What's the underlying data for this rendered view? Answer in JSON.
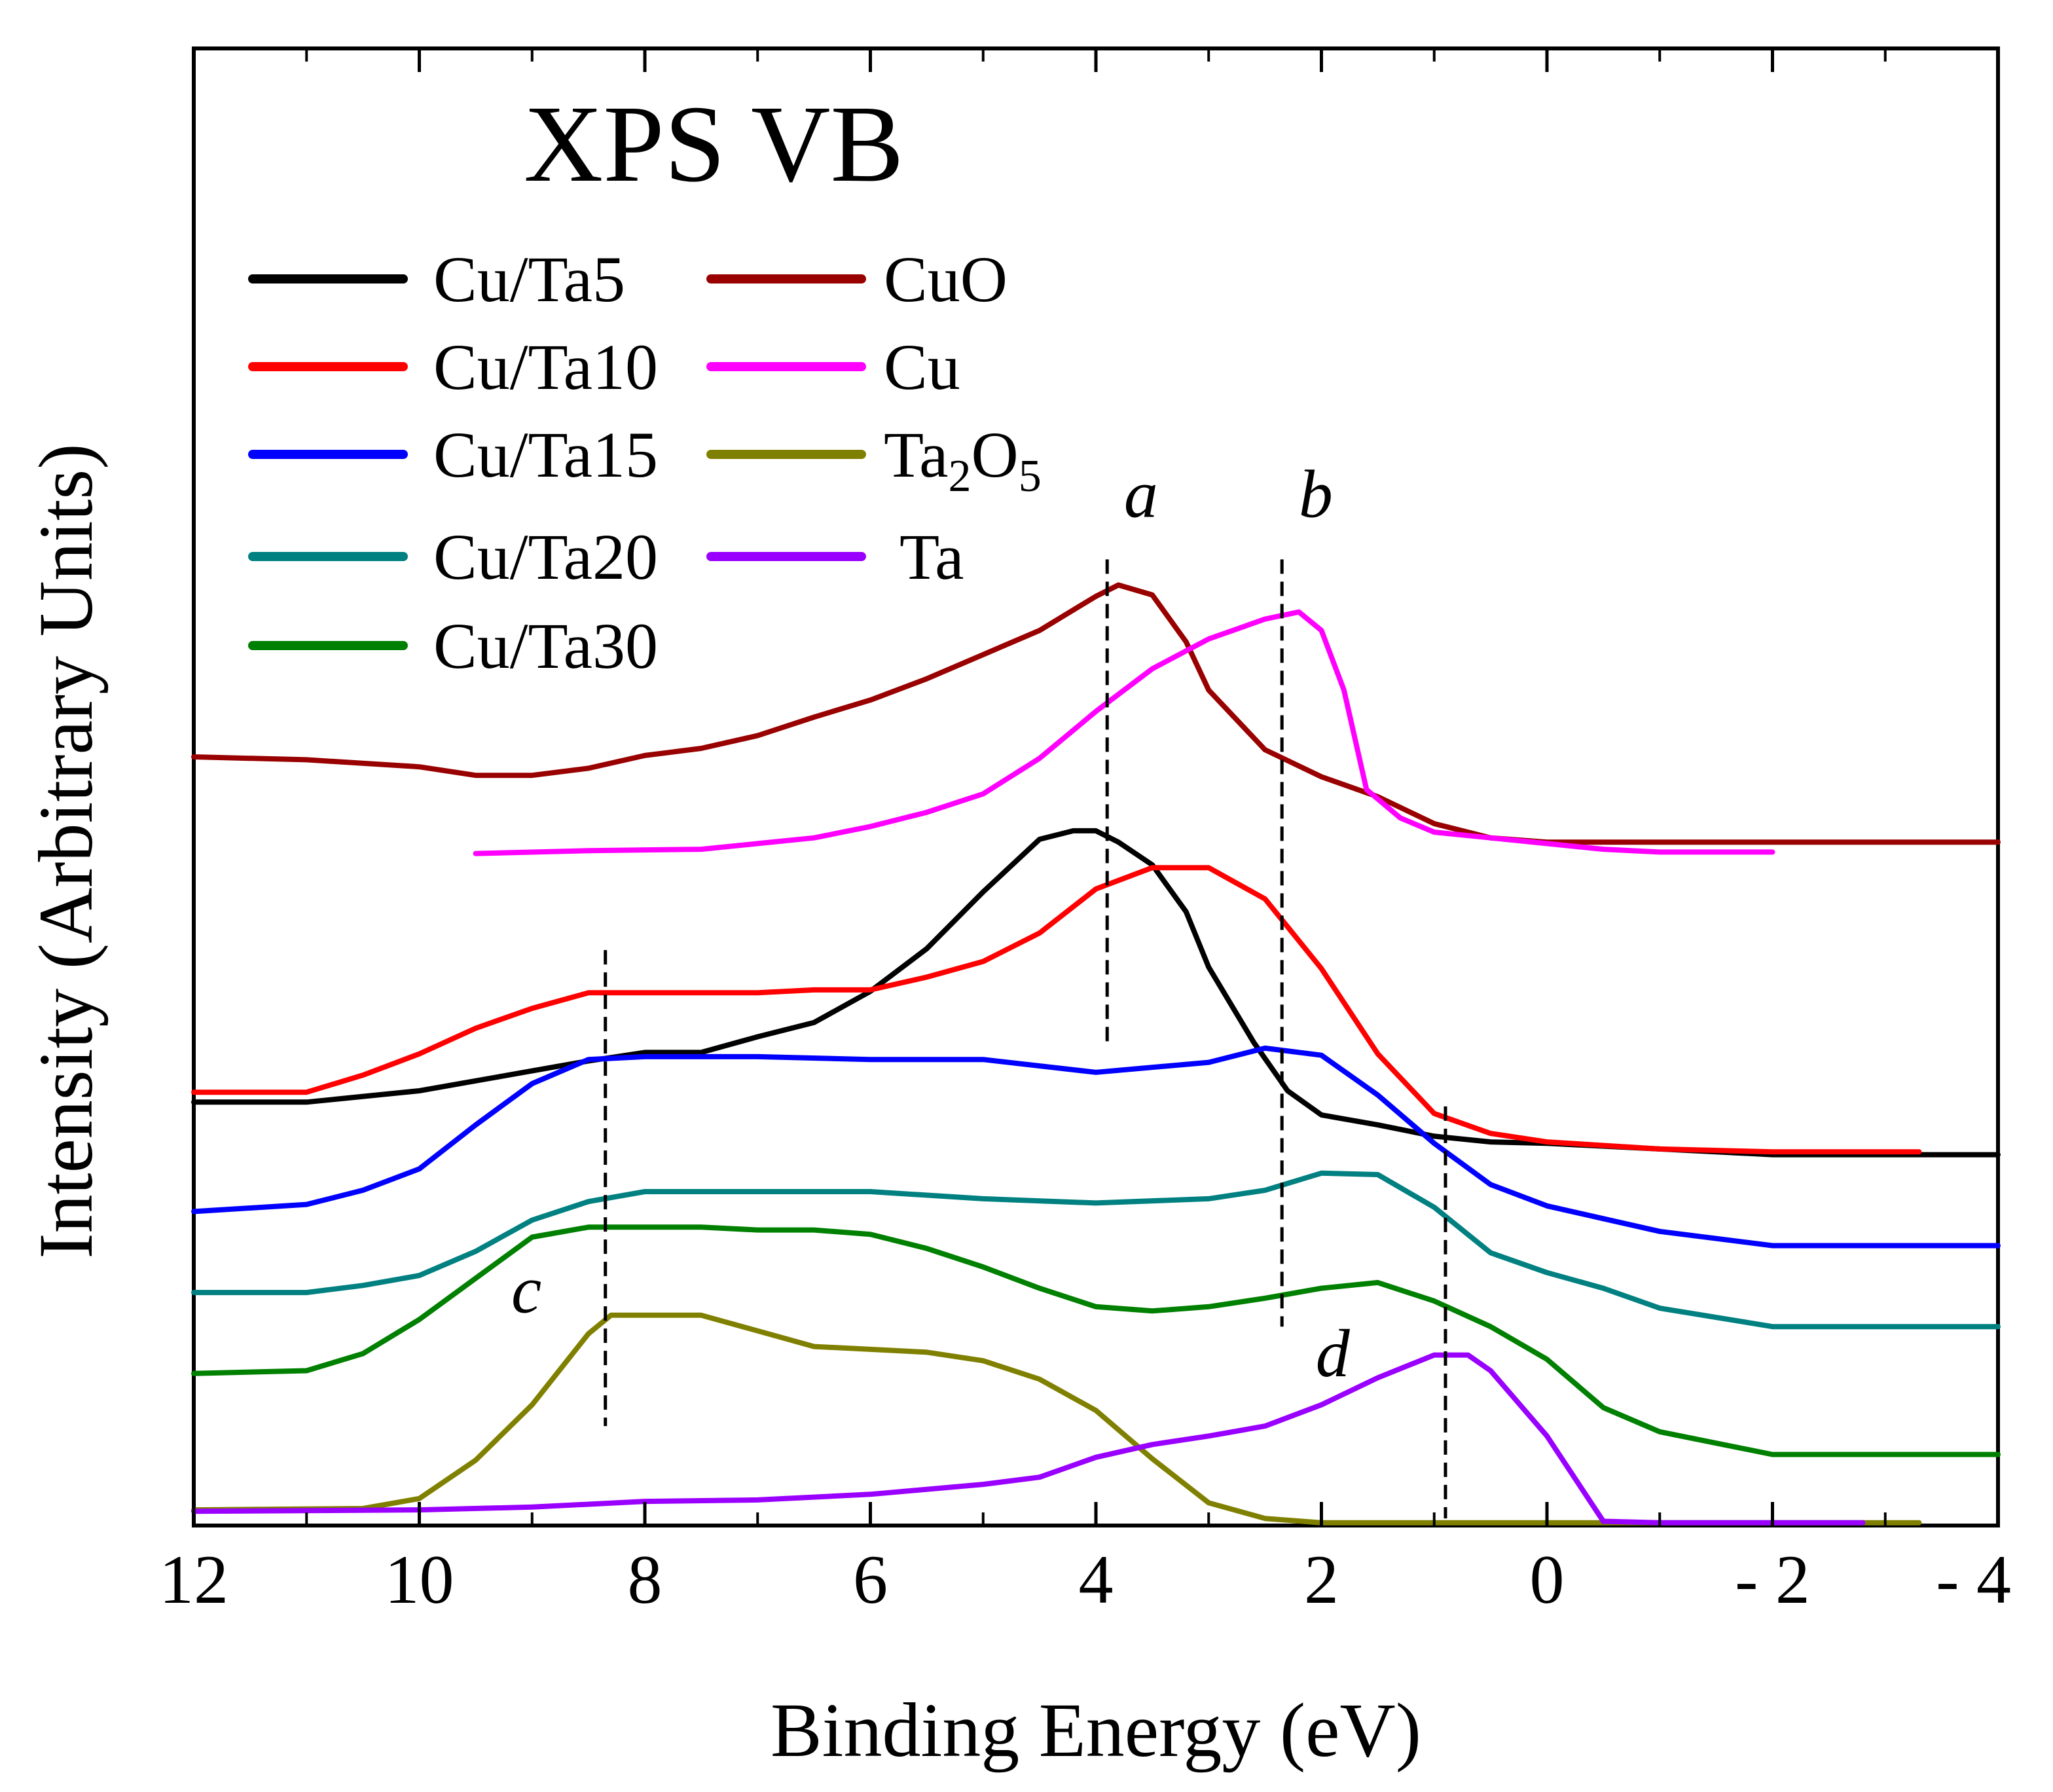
{
  "chart_data": {
    "type": "line",
    "title": "XPS VB",
    "xlabel": "Binding Energy (eV)",
    "ylabel": "Intensity (Arbitrary Units)",
    "xlim": [
      12,
      -4
    ],
    "ylim": [
      0,
      100
    ],
    "x_ticks": [
      12,
      10,
      8,
      6,
      4,
      2,
      0,
      -2,
      -4
    ],
    "x_tick_labels": [
      "12",
      "10",
      "8",
      "6",
      "4",
      "2",
      "0",
      "- 2",
      "- 4"
    ],
    "y_ticks_shown": false,
    "legend": {
      "position": "top-left",
      "columns": [
        [
          "Cu/Ta5",
          "Cu/Ta10",
          "Cu/Ta15",
          "Cu/Ta20",
          "Cu/Ta30"
        ],
        [
          "CuO",
          "Cu",
          "Ta2O5",
          "Ta"
        ]
      ]
    },
    "series": [
      {
        "name": "Cu/Ta5",
        "label_main": "Cu/Ta5",
        "label_sub": "",
        "label_tail": "",
        "color": "#000000",
        "x": [
          12.0,
          11.0,
          10.0,
          9.5,
          9.0,
          8.5,
          8.0,
          7.5,
          7.0,
          6.5,
          6.0,
          5.5,
          5.0,
          4.5,
          4.2,
          4.0,
          3.8,
          3.5,
          3.2,
          3.0,
          2.6,
          2.3,
          2.0,
          1.5,
          1.0,
          0.5,
          0.0,
          -1.0,
          -2.0,
          -3.0,
          -4.0
        ],
        "y": [
          29.8,
          29.8,
          30.6,
          31.3,
          32.0,
          32.7,
          33.3,
          33.3,
          34.4,
          35.4,
          37.6,
          40.6,
          44.6,
          48.3,
          48.9,
          48.9,
          48.1,
          46.5,
          43.2,
          39.3,
          34.0,
          30.6,
          28.9,
          28.2,
          27.4,
          27.0,
          26.9,
          26.5,
          26.1,
          26.1,
          26.1
        ]
      },
      {
        "name": "Cu/Ta10",
        "label_main": "Cu/Ta10",
        "label_sub": "",
        "label_tail": "",
        "color": "#ff0000",
        "x": [
          12.0,
          11.0,
          10.5,
          10.0,
          9.5,
          9.0,
          8.5,
          8.0,
          7.5,
          7.0,
          6.5,
          6.0,
          5.5,
          5.0,
          4.5,
          4.0,
          3.5,
          3.0,
          2.5,
          2.0,
          1.5,
          1.0,
          0.5,
          0.0,
          -1.0,
          -2.0,
          -3.3
        ],
        "y": [
          30.5,
          30.5,
          31.7,
          33.2,
          35.0,
          36.4,
          37.5,
          37.5,
          37.5,
          37.5,
          37.7,
          37.7,
          38.6,
          39.7,
          41.7,
          44.8,
          46.3,
          46.3,
          44.1,
          39.2,
          33.2,
          29.0,
          27.6,
          27.0,
          26.5,
          26.3,
          26.3
        ]
      },
      {
        "name": "Cu/Ta15",
        "label_main": "Cu/Ta15",
        "label_sub": "",
        "label_tail": "",
        "color": "#0000ff",
        "x": [
          12.0,
          11.0,
          10.5,
          10.0,
          9.5,
          9.0,
          8.5,
          8.0,
          7.0,
          6.0,
          5.0,
          4.0,
          3.0,
          2.5,
          2.0,
          1.5,
          1.0,
          0.5,
          0.0,
          -0.5,
          -1.0,
          -2.0,
          -3.0,
          -4.0
        ],
        "y": [
          22.1,
          22.6,
          23.6,
          25.1,
          28.2,
          31.1,
          32.8,
          33.0,
          33.0,
          32.8,
          32.8,
          31.9,
          32.6,
          33.6,
          33.1,
          30.3,
          26.9,
          24.0,
          22.5,
          21.6,
          20.7,
          19.7,
          19.7,
          19.7
        ]
      },
      {
        "name": "Cu/Ta20",
        "label_main": "Cu/Ta20",
        "label_sub": "",
        "label_tail": "",
        "color": "#008080",
        "x": [
          12.0,
          11.0,
          10.5,
          10.0,
          9.5,
          9.0,
          8.5,
          8.0,
          7.0,
          6.0,
          5.0,
          4.0,
          3.0,
          2.5,
          2.0,
          1.5,
          1.0,
          0.5,
          0.0,
          -0.5,
          -1.0,
          -2.0,
          -3.0,
          -4.0
        ],
        "y": [
          16.4,
          16.4,
          16.9,
          17.6,
          19.3,
          21.5,
          22.8,
          23.5,
          23.5,
          23.5,
          23.0,
          22.7,
          23.0,
          23.6,
          24.8,
          24.7,
          22.4,
          19.2,
          17.8,
          16.7,
          15.3,
          14.0,
          14.0,
          14.0
        ]
      },
      {
        "name": "Cu/Ta30",
        "label_main": "Cu/Ta30",
        "label_sub": "",
        "label_tail": "",
        "color": "#008000",
        "x": [
          12.0,
          11.0,
          10.5,
          10.0,
          9.5,
          9.0,
          8.5,
          8.0,
          7.5,
          7.0,
          6.5,
          6.0,
          5.5,
          5.0,
          4.5,
          4.0,
          3.5,
          3.0,
          2.5,
          2.0,
          1.5,
          1.0,
          0.5,
          0.0,
          -0.5,
          -1.0,
          -2.0,
          -3.0,
          -4.0
        ],
        "y": [
          10.7,
          10.9,
          12.1,
          14.5,
          17.4,
          20.3,
          21.0,
          21.0,
          21.0,
          20.8,
          20.8,
          20.5,
          19.5,
          18.2,
          16.7,
          15.4,
          15.1,
          15.4,
          16.0,
          16.7,
          17.1,
          15.8,
          14.0,
          11.7,
          8.3,
          6.6,
          5.0,
          5.0,
          5.0
        ]
      },
      {
        "name": "CuO",
        "label_main": "CuO",
        "label_sub": "",
        "label_tail": "",
        "color": "#990000",
        "x": [
          12.0,
          11.0,
          10.0,
          9.5,
          9.0,
          8.5,
          8.0,
          7.5,
          7.0,
          6.5,
          6.0,
          5.5,
          5.0,
          4.5,
          4.0,
          3.8,
          3.5,
          3.2,
          3.0,
          2.5,
          2.0,
          1.5,
          1.0,
          0.5,
          0.0,
          -1.0,
          -2.0,
          -3.0,
          -4.0
        ],
        "y": [
          54.1,
          53.9,
          53.4,
          52.8,
          52.8,
          53.3,
          54.2,
          54.7,
          55.6,
          56.9,
          58.1,
          59.6,
          61.3,
          63.0,
          65.4,
          66.2,
          65.5,
          62.2,
          58.8,
          54.6,
          52.7,
          51.3,
          49.4,
          48.4,
          48.1,
          48.1,
          48.1,
          48.1,
          48.1
        ]
      },
      {
        "name": "Cu",
        "label_main": "Cu",
        "label_sub": "",
        "label_tail": "",
        "color": "#ff00ff",
        "x": [
          9.5,
          8.5,
          7.5,
          7.0,
          6.5,
          6.0,
          5.5,
          5.0,
          4.5,
          4.0,
          3.5,
          3.0,
          2.5,
          2.2,
          2.0,
          1.8,
          1.6,
          1.3,
          1.0,
          0.5,
          0.0,
          -0.5,
          -1.0,
          -2.0
        ],
        "y": [
          47.3,
          47.5,
          47.6,
          48.0,
          48.4,
          49.2,
          50.2,
          51.5,
          54.0,
          57.3,
          60.3,
          62.4,
          63.8,
          64.3,
          63.0,
          58.8,
          51.8,
          49.8,
          48.8,
          48.4,
          48.0,
          47.6,
          47.4,
          47.4
        ]
      },
      {
        "name": "Ta2O5",
        "label_main": "Ta",
        "label_sub": "2",
        "label_tail": "O5",
        "color": "#808000",
        "x": [
          12.0,
          10.5,
          10.0,
          9.5,
          9.0,
          8.5,
          8.3,
          8.0,
          7.5,
          7.0,
          6.5,
          6.0,
          5.5,
          5.0,
          4.5,
          4.0,
          3.5,
          3.0,
          2.5,
          2.0,
          1.0,
          0.0,
          -1.0,
          -2.0,
          -3.3
        ],
        "y": [
          1.1,
          1.2,
          1.9,
          4.6,
          8.5,
          13.5,
          14.8,
          14.8,
          14.8,
          13.7,
          12.6,
          12.4,
          12.2,
          11.6,
          10.3,
          8.1,
          4.7,
          1.6,
          0.5,
          0.2,
          0.2,
          0.2,
          0.2,
          0.2,
          0.2
        ]
      },
      {
        "name": "Ta",
        "label_main": "Ta",
        "label_sub": "",
        "label_tail": "",
        "color": "#9900ff",
        "x": [
          12.0,
          10.0,
          9.0,
          8.0,
          7.0,
          6.0,
          5.0,
          4.5,
          4.0,
          3.5,
          3.0,
          2.5,
          2.0,
          1.5,
          1.0,
          0.7,
          0.5,
          0.0,
          -0.5,
          -1.0,
          -2.0,
          -2.8
        ],
        "y": [
          1.0,
          1.1,
          1.3,
          1.7,
          1.8,
          2.2,
          2.9,
          3.4,
          4.8,
          5.7,
          6.3,
          7.0,
          8.5,
          10.4,
          12.0,
          12.0,
          10.9,
          6.3,
          0.3,
          0.2,
          0.2,
          0.2
        ]
      }
    ],
    "reference_lines": [
      {
        "label": "a",
        "x": 3.9,
        "y_range": [
          34.0,
          68.0
        ],
        "label_anchor_x": 3.6,
        "label_anchor_y": 71.0
      },
      {
        "label": "b",
        "x": 2.35,
        "y_range": [
          14.0,
          68.0
        ],
        "label_anchor_x": 2.05,
        "label_anchor_y": 71.0
      },
      {
        "label": "c",
        "x": 8.35,
        "y_range": [
          7.0,
          40.5
        ],
        "label_anchor_x": 9.05,
        "label_anchor_y": 15.0
      },
      {
        "label": "d",
        "x": 0.9,
        "y_range": [
          0.5,
          29.5
        ],
        "label_anchor_x": 1.9,
        "label_anchor_y": 10.5
      }
    ]
  }
}
